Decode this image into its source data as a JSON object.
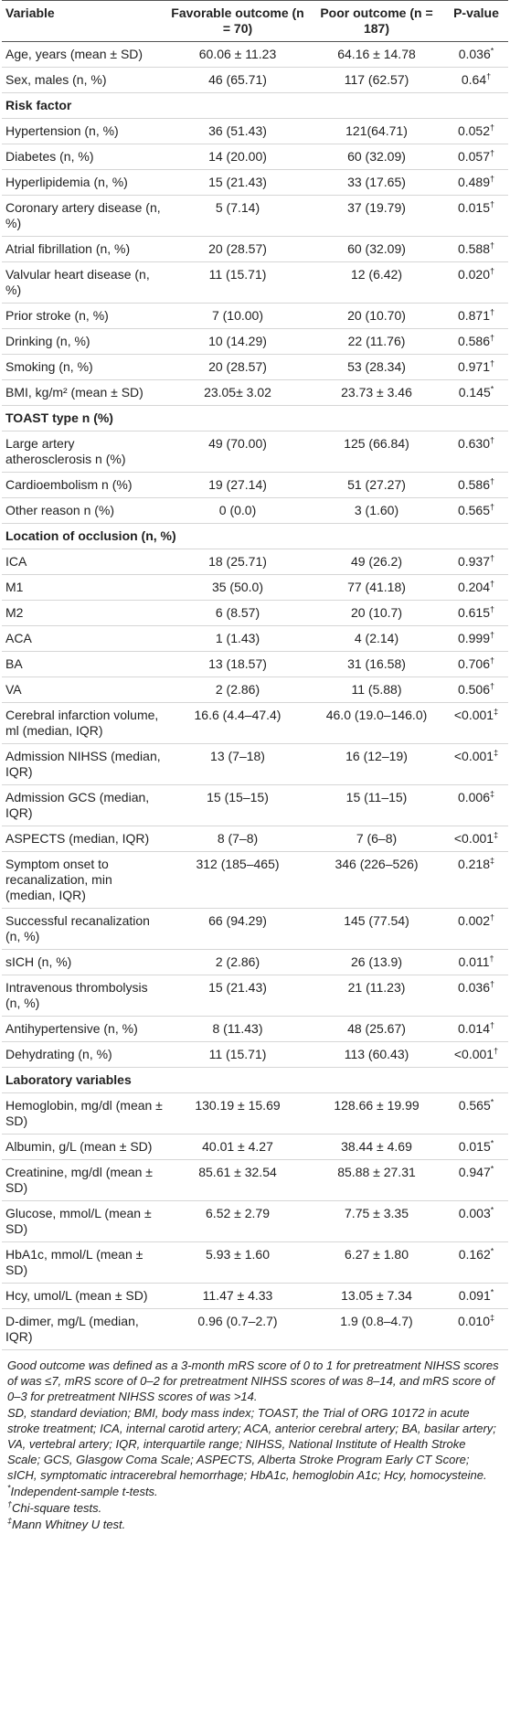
{
  "table": {
    "header": [
      "Variable",
      "Favorable outcome (n = 70)",
      "Poor outcome (n = 187)",
      "P-value"
    ],
    "rows": [
      [
        "Age, years (mean ± SD)",
        "60.06 ± 11.23",
        "64.16 ± 14.78",
        "0.036",
        "*"
      ],
      [
        "Sex, males (n, %)",
        "46 (65.71)",
        "117 (62.57)",
        "0.64",
        "†"
      ],
      {
        "section": "Risk factor"
      },
      [
        "Hypertension (n, %)",
        "36 (51.43)",
        "121(64.71)",
        "0.052",
        "†"
      ],
      [
        "Diabetes (n, %)",
        "14 (20.00)",
        "60 (32.09)",
        "0.057",
        "†"
      ],
      [
        "Hyperlipidemia (n, %)",
        "15 (21.43)",
        "33 (17.65)",
        "0.489",
        "†"
      ],
      [
        "Coronary artery disease (n, %)",
        "5 (7.14)",
        "37 (19.79)",
        "0.015",
        "†"
      ],
      [
        "Atrial fibrillation (n, %)",
        "20 (28.57)",
        "60 (32.09)",
        "0.588",
        "†"
      ],
      [
        "Valvular heart disease (n, %)",
        "11 (15.71)",
        "12 (6.42)",
        "0.020",
        "†"
      ],
      [
        "Prior stroke (n, %)",
        "7 (10.00)",
        "20 (10.70)",
        "0.871",
        "†"
      ],
      [
        "Drinking (n, %)",
        "10 (14.29)",
        "22 (11.76)",
        "0.586",
        "†"
      ],
      [
        "Smoking (n, %)",
        "20 (28.57)",
        "53 (28.34)",
        "0.971",
        "†"
      ],
      [
        "BMI, kg/m² (mean ± SD)",
        "23.05± 3.02",
        "23.73 ± 3.46",
        "0.145",
        "*"
      ],
      {
        "section": "TOAST type n (%)"
      },
      [
        "Large artery atherosclerosis n (%)",
        "49 (70.00)",
        "125 (66.84)",
        "0.630",
        "†"
      ],
      [
        "Cardioembolism n (%)",
        "19 (27.14)",
        "51 (27.27)",
        "0.586",
        "†"
      ],
      [
        "Other reason n (%)",
        "0 (0.0)",
        "3 (1.60)",
        "0.565",
        "†"
      ],
      {
        "section": "Location of occlusion (n, %)"
      },
      [
        "ICA",
        "18 (25.71)",
        "49 (26.2)",
        "0.937",
        "†"
      ],
      [
        "M1",
        "35 (50.0)",
        "77 (41.18)",
        "0.204",
        "†"
      ],
      [
        "M2",
        "6 (8.57)",
        "20 (10.7)",
        "0.615",
        "†"
      ],
      [
        "ACA",
        "1 (1.43)",
        "4 (2.14)",
        "0.999",
        "†"
      ],
      [
        "BA",
        "13 (18.57)",
        "31 (16.58)",
        "0.706",
        "†"
      ],
      [
        "VA",
        "2 (2.86)",
        "11 (5.88)",
        "0.506",
        "†"
      ],
      [
        "Cerebral infarction volume, ml (median, IQR)",
        "16.6 (4.4–47.4)",
        "46.0 (19.0–146.0)",
        "<0.001",
        "‡"
      ],
      [
        "Admission NIHSS (median, IQR)",
        "13 (7–18)",
        "16 (12–19)",
        "<0.001",
        "‡"
      ],
      [
        "Admission GCS (median, IQR)",
        "15 (15–15)",
        "15 (11–15)",
        "0.006",
        "‡"
      ],
      [
        "ASPECTS (median, IQR)",
        "8 (7–8)",
        "7 (6–8)",
        "<0.001",
        "‡"
      ],
      [
        "Symptom onset to recanalization, min (median, IQR)",
        "312 (185–465)",
        "346 (226–526)",
        "0.218",
        "‡"
      ],
      [
        "Successful recanalization (n, %)",
        "66 (94.29)",
        "145 (77.54)",
        "0.002",
        "†"
      ],
      [
        "sICH (n, %)",
        "2 (2.86)",
        "26 (13.9)",
        "0.011",
        "†"
      ],
      [
        "Intravenous thrombolysis (n, %)",
        "15 (21.43)",
        "21 (11.23)",
        "0.036",
        "†"
      ],
      [
        "Antihypertensive (n, %)",
        "8 (11.43)",
        "48 (25.67)",
        "0.014",
        "†"
      ],
      [
        "Dehydrating (n, %)",
        "11 (15.71)",
        "113 (60.43)",
        "<0.001",
        "†"
      ],
      {
        "section": "Laboratory variables"
      },
      [
        "Hemoglobin, mg/dl (mean ± SD)",
        "130.19 ± 15.69",
        "128.66 ± 19.99",
        "0.565",
        "*"
      ],
      [
        "Albumin, g/L (mean ± SD)",
        "40.01 ± 4.27",
        "38.44 ± 4.69",
        "0.015",
        "*"
      ],
      [
        "Creatinine, mg/dl (mean ± SD)",
        "85.61 ± 32.54",
        "85.88 ± 27.31",
        "0.947",
        "*"
      ],
      [
        "Glucose, mmol/L (mean ± SD)",
        "6.52 ± 2.79",
        "7.75 ± 3.35",
        "0.003",
        "*"
      ],
      [
        "HbA1c, mmol/L (mean ± SD)",
        "5.93 ± 1.60",
        "6.27 ± 1.80",
        "0.162",
        "*"
      ],
      [
        "Hcy, umol/L (mean ± SD)",
        "11.47 ± 4.33",
        "13.05 ± 7.34",
        "0.091",
        "*"
      ],
      [
        "D-dimer, mg/L (median, IQR)",
        "0.96 (0.7–2.7)",
        "1.9 (0.8–4.7)",
        "0.010",
        "‡"
      ]
    ]
  },
  "footnotes": {
    "paragraphs": [
      "Good outcome was defined as a 3-month mRS score of 0 to 1 for pretreatment NIHSS scores of was ≤7, mRS score of 0–2 for pretreatment NIHSS scores of was 8–14, and mRS score of 0–3 for pretreatment NIHSS scores of was >14.",
      "SD, standard deviation; BMI, body mass index; TOAST, the Trial of ORG 10172 in acute stroke treatment; ICA, internal carotid artery; ACA, anterior cerebral artery; BA, basilar artery; VA, vertebral artery; IQR, interquartile range; NIHSS, National Institute of Health Stroke Scale; GCS, Glasgow Coma Scale; ASPECTS, Alberta Stroke Program Early CT Score; sICH, symptomatic intracerebral hemorrhage; HbA1c, hemoglobin A1c; Hcy, homocysteine."
    ],
    "marks": [
      {
        "mark": "*",
        "text": "Independent-sample t-tests."
      },
      {
        "mark": "†",
        "text": "Chi-square tests."
      },
      {
        "mark": "‡",
        "text": "Mann Whitney U test."
      }
    ]
  }
}
